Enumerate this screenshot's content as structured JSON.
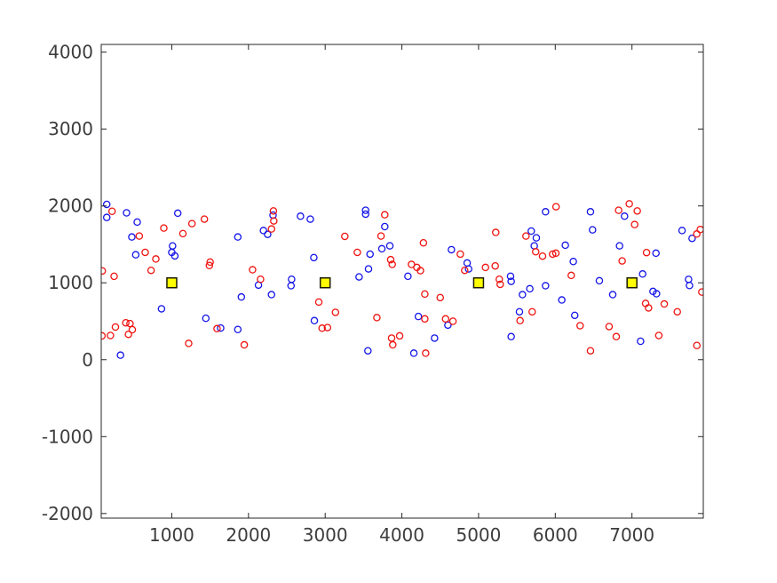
{
  "figure": {
    "background": "#ffffff",
    "axis_color": "#262626",
    "tick_label_color": "#3d3d3d"
  },
  "chart_data": {
    "type": "scatter",
    "title": "",
    "xlabel": "",
    "ylabel": "",
    "xlim": [
      80,
      7930
    ],
    "ylim": [
      -2060,
      4100
    ],
    "xticks": [
      1000,
      2000,
      3000,
      4000,
      5000,
      6000,
      7000
    ],
    "yticks": [
      -2000,
      -1000,
      0,
      1000,
      2000,
      3000,
      4000
    ],
    "grid": false,
    "box": true,
    "tick_direction": "in",
    "legend": "none",
    "series": [
      {
        "name": "blue-samples",
        "marker": "open-circle",
        "color": "#1515e8",
        "points": [
          [
            152,
            2020
          ],
          [
            152,
            1850
          ],
          [
            410,
            1910
          ],
          [
            549,
            1790
          ],
          [
            479,
            1596
          ],
          [
            530,
            1365
          ],
          [
            1010,
            1480
          ],
          [
            1000,
            1395
          ],
          [
            1040,
            1350
          ],
          [
            1078,
            1905
          ],
          [
            866,
            662
          ],
          [
            331,
            59
          ],
          [
            1861,
            1596
          ],
          [
            2130,
            970
          ],
          [
            1907,
            816
          ],
          [
            1444,
            539
          ],
          [
            1637,
            412
          ],
          [
            1861,
            393
          ],
          [
            2678,
            1866
          ],
          [
            2806,
            1828
          ],
          [
            2320,
            1880
          ],
          [
            2195,
            1680
          ],
          [
            2250,
            1630
          ],
          [
            2852,
            1328
          ],
          [
            2562,
            1046
          ],
          [
            2555,
            962
          ],
          [
            2300,
            846
          ],
          [
            2859,
            508
          ],
          [
            3527,
            1943
          ],
          [
            3527,
            1893
          ],
          [
            3777,
            1731
          ],
          [
            3585,
            1373
          ],
          [
            3739,
            1443
          ],
          [
            3843,
            1481
          ],
          [
            3565,
            1181
          ],
          [
            3442,
            1077
          ],
          [
            3557,
            116
          ],
          [
            4646,
            1431
          ],
          [
            4079,
            1085
          ],
          [
            4851,
            1258
          ],
          [
            4870,
            1181
          ],
          [
            4215,
            562
          ],
          [
            4600,
            450
          ],
          [
            4426,
            281
          ],
          [
            4156,
            85
          ],
          [
            5873,
            1924
          ],
          [
            5687,
            1673
          ],
          [
            5753,
            1585
          ],
          [
            5726,
            1481
          ],
          [
            5417,
            1085
          ],
          [
            5425,
            1019
          ],
          [
            5668,
            923
          ],
          [
            5873,
            962
          ],
          [
            5572,
            846
          ],
          [
            5533,
            623
          ],
          [
            5425,
            300
          ],
          [
            6459,
            1924
          ],
          [
            6486,
            1689
          ],
          [
            6131,
            1489
          ],
          [
            6838,
            1481
          ],
          [
            6235,
            1277
          ],
          [
            6575,
            1027
          ],
          [
            6749,
            846
          ],
          [
            6085,
            777
          ],
          [
            6254,
            577
          ],
          [
            6903,
            1866
          ],
          [
            7112,
            240
          ],
          [
            7653,
            1680
          ],
          [
            7784,
            1578
          ],
          [
            7313,
            1385
          ],
          [
            7139,
            1115
          ],
          [
            7738,
            1045
          ],
          [
            7750,
            965
          ],
          [
            7274,
            888
          ],
          [
            7320,
            858
          ]
        ]
      },
      {
        "name": "red-samples",
        "marker": "open-circle",
        "color": "#ef1410",
        "points": [
          [
            221,
            1930
          ],
          [
            576,
            1608
          ],
          [
            896,
            1712
          ],
          [
            1145,
            1640
          ],
          [
            653,
            1396
          ],
          [
            792,
            1310
          ],
          [
            730,
            1162
          ],
          [
            94,
            1155
          ],
          [
            248,
            1085
          ],
          [
            1263,
            1770
          ],
          [
            1425,
            1828
          ],
          [
            1500,
            1270
          ],
          [
            1490,
            1225
          ],
          [
            2053,
            1170
          ],
          [
            1590,
            404
          ],
          [
            1220,
            212
          ],
          [
            1945,
            193
          ],
          [
            2325,
            1935
          ],
          [
            2330,
            1805
          ],
          [
            2300,
            1700
          ],
          [
            2157,
            1046
          ],
          [
            2917,
            750
          ],
          [
            2960,
            410
          ],
          [
            3030,
            418
          ],
          [
            3777,
            1885
          ],
          [
            3256,
            1604
          ],
          [
            3728,
            1608
          ],
          [
            3419,
            1396
          ],
          [
            3854,
            1301
          ],
          [
            3874,
            1239
          ],
          [
            3134,
            616
          ],
          [
            3674,
            547
          ],
          [
            3866,
            281
          ],
          [
            3881,
            193
          ],
          [
            3971,
            310
          ],
          [
            4281,
            1520
          ],
          [
            4762,
            1373
          ],
          [
            4125,
            1239
          ],
          [
            4196,
            1200
          ],
          [
            4242,
            1158
          ],
          [
            4819,
            1162
          ],
          [
            4299,
            854
          ],
          [
            4500,
            808
          ],
          [
            4299,
            531
          ],
          [
            4570,
            531
          ],
          [
            4666,
            500
          ],
          [
            4310,
            85
          ],
          [
            5224,
            1655
          ],
          [
            5618,
            1608
          ],
          [
            5745,
            1404
          ],
          [
            5834,
            1347
          ],
          [
            5965,
            1373
          ],
          [
            5090,
            1200
          ],
          [
            5217,
            1220
          ],
          [
            5270,
            1046
          ],
          [
            5282,
            980
          ],
          [
            5699,
            623
          ],
          [
            5541,
            508
          ],
          [
            6010,
            1990
          ],
          [
            6826,
            1943
          ],
          [
            6008,
            1385
          ],
          [
            6872,
            1285
          ],
          [
            6208,
            1096
          ],
          [
            6324,
            442
          ],
          [
            6702,
            431
          ],
          [
            6795,
            300
          ],
          [
            6459,
            116
          ],
          [
            6965,
            2027
          ],
          [
            7069,
            1935
          ],
          [
            7035,
            1758
          ],
          [
            7845,
            1635
          ],
          [
            7891,
            1693
          ],
          [
            7190,
            1393
          ],
          [
            7911,
            880
          ],
          [
            7178,
            732
          ],
          [
            7216,
            674
          ],
          [
            7421,
            725
          ],
          [
            7591,
            623
          ],
          [
            7350,
            315
          ],
          [
            7846,
            185
          ],
          [
            400,
            480
          ],
          [
            455,
            470
          ],
          [
            485,
            390
          ],
          [
            435,
            330
          ],
          [
            265,
            425
          ],
          [
            200,
            315
          ],
          [
            90,
            310
          ]
        ]
      },
      {
        "name": "cluster-centers",
        "marker": "filled-square",
        "color": "#ffff00",
        "edge_color": "#1a1a00",
        "points": [
          [
            1000,
            1000
          ],
          [
            3000,
            1000
          ],
          [
            5000,
            1000
          ],
          [
            7000,
            1000
          ]
        ]
      }
    ]
  }
}
